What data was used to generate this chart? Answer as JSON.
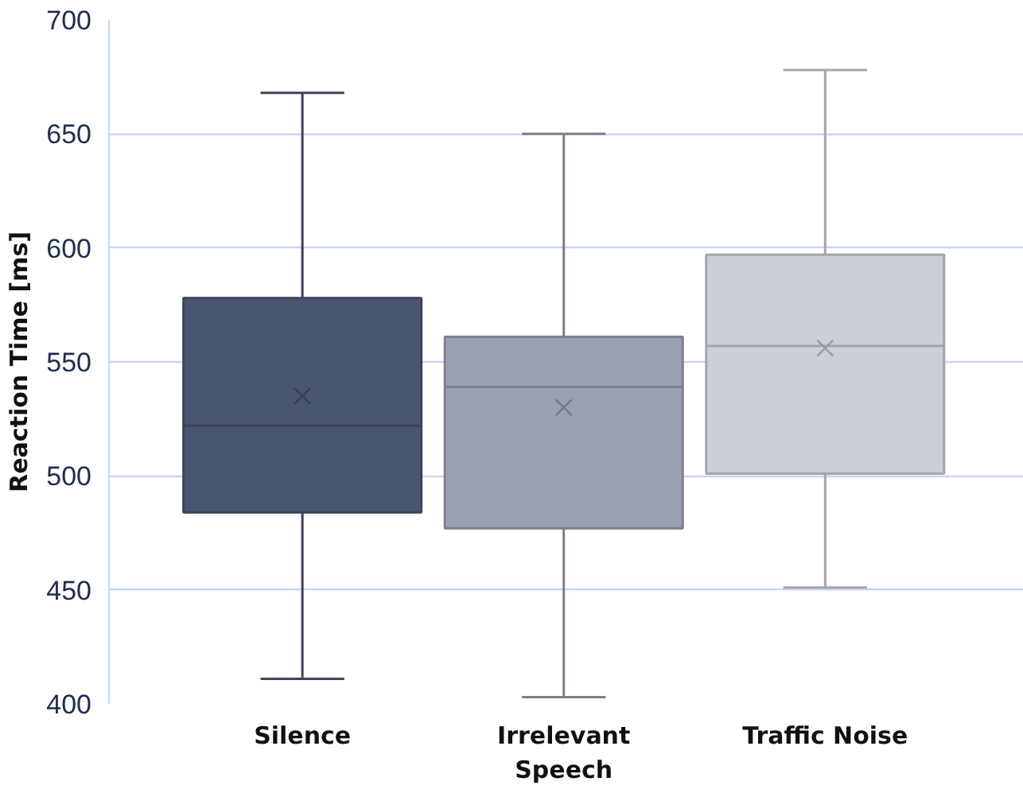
{
  "chart_data": {
    "type": "box",
    "ylabel": "Reaction Time [ms]",
    "categories": [
      "Silence",
      "Irrelevant\nSpeech",
      "Traffic Noise"
    ],
    "boxes": [
      {
        "low": 411,
        "q1": 484,
        "median": 522,
        "q3": 578,
        "high": 668,
        "mean": 535
      },
      {
        "low": 403,
        "q1": 477,
        "median": 539,
        "q3": 561,
        "high": 650,
        "mean": 530
      },
      {
        "low": 451,
        "q1": 501,
        "median": 557,
        "q3": 597,
        "high": 678,
        "mean": 556
      }
    ],
    "colors": [
      "#4a5670",
      "#9aa0b0",
      "#cbcfd8"
    ],
    "ylim": [
      400,
      700
    ],
    "yticks": [
      400,
      450,
      500,
      550,
      600,
      650,
      700
    ],
    "grid": "y",
    "marker": "cross"
  }
}
